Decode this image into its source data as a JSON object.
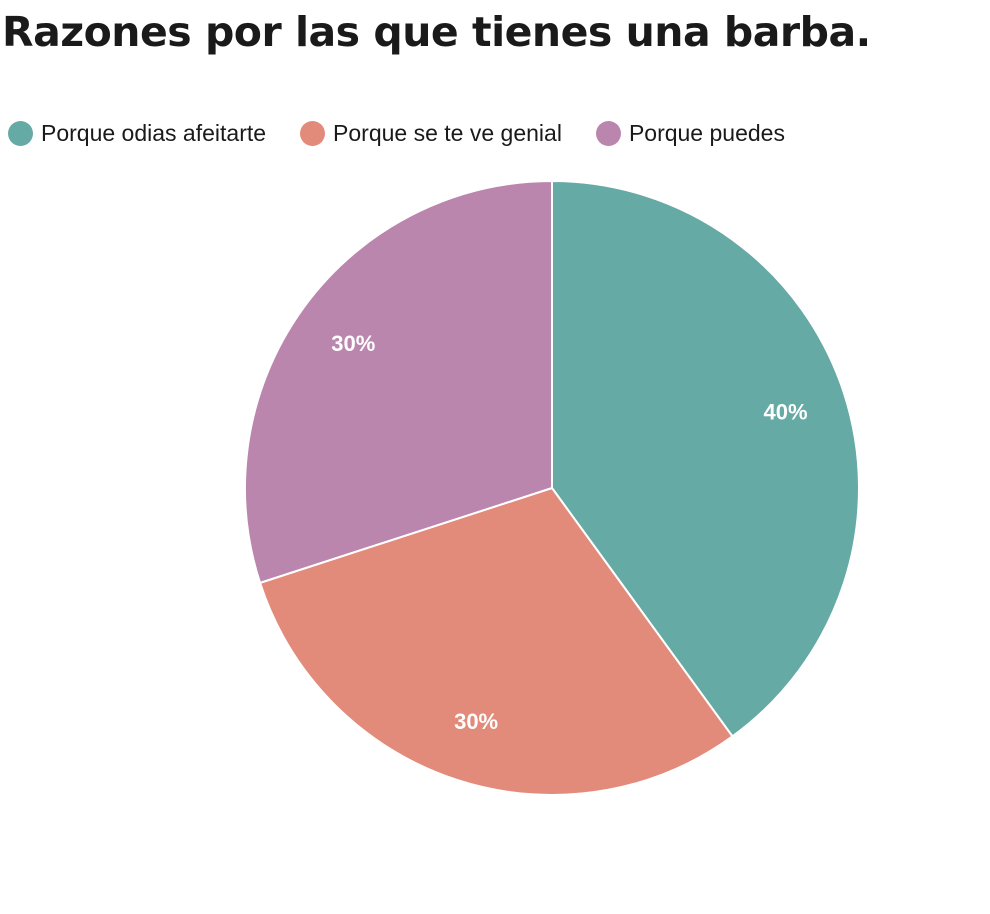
{
  "chart_data": {
    "type": "pie",
    "title": "Razones por las que tienes una barba.",
    "legend_position": "top-left",
    "slices": [
      {
        "label": "Porque odias afeitarte",
        "value": 40,
        "display": "40%",
        "color": "#66aaa6"
      },
      {
        "label": "Porque se te ve genial",
        "value": 30,
        "display": "30%",
        "color": "#e38b7a"
      },
      {
        "label": "Porque puedes",
        "value": 30,
        "display": "30%",
        "color": "#bb86ae"
      }
    ]
  }
}
